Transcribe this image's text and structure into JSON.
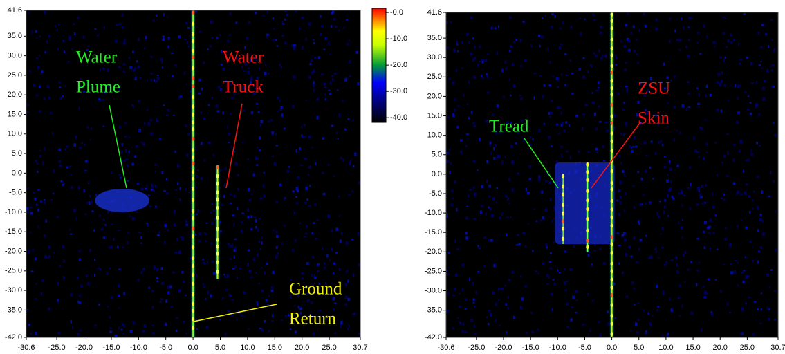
{
  "chart_data": [
    {
      "type": "image",
      "xlim": [
        -30.6,
        30.7
      ],
      "ylim": [
        -42.0,
        41.6
      ],
      "xticks": [
        -30.6,
        {
          "value": -25,
          "label": "-25.0"
        },
        {
          "value": -20,
          "label": "-20.0"
        },
        {
          "value": -15,
          "label": "-15.0"
        },
        {
          "value": -10,
          "label": "-10.0"
        },
        {
          "value": -5,
          "label": "-5.0"
        },
        {
          "value": 0,
          "label": "0.0"
        },
        {
          "value": 5,
          "label": "5.0"
        },
        {
          "value": 10,
          "label": "10.0"
        },
        {
          "value": 15,
          "label": "15.0"
        },
        {
          "value": 20,
          "label": "20.0"
        },
        {
          "value": 25,
          "label": "25.0"
        },
        30.7
      ],
      "yticks": [
        41.6,
        {
          "value": 35,
          "label": "35.0"
        },
        {
          "value": 30,
          "label": "30.0"
        },
        {
          "value": 25,
          "label": "25.0"
        },
        {
          "value": 20,
          "label": "20.0"
        },
        {
          "value": 15,
          "label": "15.0"
        },
        {
          "value": 10,
          "label": "10.0"
        },
        {
          "value": 5,
          "label": "5.0"
        },
        {
          "value": 0,
          "label": "0.0"
        },
        {
          "value": -5,
          "label": "-5.0"
        },
        {
          "value": -10,
          "label": "-10.0"
        },
        {
          "value": -15,
          "label": "-15.0"
        },
        {
          "value": -20,
          "label": "-20.0"
        },
        {
          "value": -25,
          "label": "-25.0"
        },
        {
          "value": -30,
          "label": "-30.0"
        },
        {
          "value": -35,
          "label": "-35.0"
        },
        {
          "value": -42,
          "label": "-42.0"
        }
      ],
      "annotations": [
        {
          "lines": [
            "Water",
            "Plume"
          ],
          "color": "#22ee22"
        },
        {
          "lines": [
            "Water",
            "Truck"
          ],
          "color": "#ff1010"
        },
        {
          "lines": [
            "Ground",
            "Return"
          ],
          "color": "#f4f400"
        }
      ],
      "colorbar": {
        "ylim": [
          -41.8,
          1.6
        ],
        "ticks": [
          {
            "value": 0,
            "label": "-0.0"
          },
          {
            "value": -10,
            "label": "-10.0"
          },
          {
            "value": -20,
            "label": "-20.0"
          },
          {
            "value": -30,
            "label": "-30.0"
          },
          {
            "value": -40,
            "label": "-40.0"
          }
        ]
      }
    },
    {
      "type": "image",
      "xlim": [
        -30.6,
        30.7
      ],
      "ylim": [
        -42.0,
        41.6
      ],
      "xticks": [
        -30.6,
        {
          "value": -25,
          "label": "-25.0"
        },
        {
          "value": -20,
          "label": "-20.0"
        },
        {
          "value": -15,
          "label": "-15.0"
        },
        {
          "value": -10,
          "label": "-10.0"
        },
        {
          "value": -5,
          "label": "-5.0"
        },
        {
          "value": 0,
          "label": "0.0"
        },
        {
          "value": 5,
          "label": "5.0"
        },
        {
          "value": 10,
          "label": "10.0"
        },
        {
          "value": 15,
          "label": "15.0"
        },
        {
          "value": 20,
          "label": "20.0"
        },
        {
          "value": 25,
          "label": "25.0"
        },
        30.7
      ],
      "yticks": [
        41.6,
        {
          "value": 35,
          "label": "35.0"
        },
        {
          "value": 30,
          "label": "30.0"
        },
        {
          "value": 25,
          "label": "25.0"
        },
        {
          "value": 20,
          "label": "20.0"
        },
        {
          "value": 15,
          "label": "15.0"
        },
        {
          "value": 10,
          "label": "10.0"
        },
        {
          "value": 5,
          "label": "5.0"
        },
        {
          "value": 0,
          "label": "0.0"
        },
        {
          "value": -5,
          "label": "-5.0"
        },
        {
          "value": -10,
          "label": "-10.0"
        },
        {
          "value": -15,
          "label": "-15.0"
        },
        {
          "value": -20,
          "label": "-20.0"
        },
        {
          "value": -25,
          "label": "-25.0"
        },
        {
          "value": -30,
          "label": "-30.0"
        },
        {
          "value": -35,
          "label": "-35.0"
        },
        {
          "value": -42,
          "label": "-42.0"
        }
      ],
      "annotations": [
        {
          "lines": [
            "Tread"
          ],
          "color": "#22ee22"
        },
        {
          "lines": [
            "ZSU",
            "Skin"
          ],
          "color": "#ff1010"
        }
      ]
    }
  ]
}
